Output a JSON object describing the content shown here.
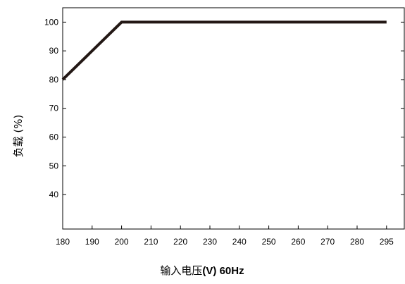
{
  "chart_data": {
    "type": "line",
    "xlabel": "输入电压(V) 60Hz",
    "ylabel": "负载 (%)",
    "xticks": [
      "180",
      "190",
      "200",
      "210",
      "220",
      "230",
      "240",
      "250",
      "260",
      "270",
      "280",
      "295"
    ],
    "yticks": [
      100,
      90,
      80,
      70,
      60,
      50,
      40
    ],
    "ylim": [
      28,
      105
    ],
    "grid": false,
    "series": [
      {
        "x": [
          "180",
          "200",
          "295"
        ],
        "y": [
          80,
          100,
          100
        ],
        "color": "#231815"
      }
    ]
  }
}
